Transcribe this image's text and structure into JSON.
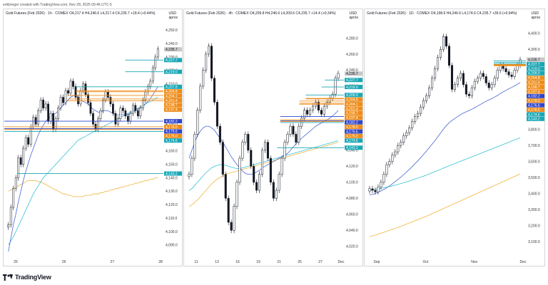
{
  "header": {
    "credit": "erikbreger created with TradingView.com, Nov 28, 2025 09:46 UTC-5"
  },
  "brand": {
    "name": "TradingView"
  },
  "colors": {
    "up": "#131722",
    "down": "#131722",
    "ma_fast": "#4a67d6",
    "ma_mid": "#35c2d6",
    "ma_slow": "#f0b43c",
    "teal": "#18a7b5",
    "orange": "#f08c18",
    "blue": "#3045c9",
    "grey_tag": "#c8c8c8"
  },
  "chart_data": [
    {
      "type": "line",
      "title": "Gold Futures (Feb 2026) · 1h · COMEX",
      "ohlc": "O4,217.4 H4,246.6 L4,217.4 C4,235.7 +18.4 (+0.44%)",
      "currency": "USD",
      "unit": "aprox",
      "ylim": [
        4083,
        4256
      ],
      "yticks": [
        4090,
        4100,
        4110,
        4120,
        4130,
        4140,
        4150,
        4160,
        4170,
        4180,
        4190,
        4200,
        4210,
        4220,
        4230,
        4240,
        4250
      ],
      "ytick_labels": [
        "4,090.0",
        "4,100.0",
        "4,110.0",
        "4,120.0",
        "4,130.0",
        "4,140.0",
        "4,150.0",
        "4,160.0",
        "4,170.0",
        "4,180.0",
        "4,190.0",
        "4,200.0",
        "4,210.0",
        "4,220.0",
        "4,230.0",
        "4,240.0",
        "4,250.0"
      ],
      "xlabels": [
        "25",
        "26",
        "27",
        "28"
      ],
      "close_series": [
        4105,
        4118,
        4132,
        4140,
        4155,
        4150,
        4162,
        4170,
        4165,
        4178,
        4185,
        4180,
        4190,
        4198,
        4192,
        4195,
        4182,
        4188,
        4176,
        4184,
        4192,
        4200,
        4196,
        4205,
        4203,
        4212,
        4208,
        4200,
        4195,
        4205,
        4210,
        4202,
        4196,
        4188,
        4180,
        4176,
        4184,
        4190,
        4198,
        4204,
        4200,
        4195,
        4188,
        4180,
        4184,
        4192,
        4190,
        4186,
        4182,
        4188,
        4194,
        4190,
        4186,
        4192,
        4198,
        4204,
        4208,
        4212,
        4222,
        4230,
        4236
      ],
      "ma_fast": [
        4085,
        4095,
        4105,
        4113,
        4122,
        4130,
        4138,
        4145,
        4151,
        4157,
        4162,
        4167,
        4172,
        4176,
        4179,
        4182,
        4184,
        4186,
        4187,
        4188,
        4190,
        4192,
        4194,
        4196,
        4198,
        4200,
        4201,
        4202,
        4200,
        4198,
        4197,
        4196,
        4195,
        4193,
        4191,
        4190,
        4189,
        4189,
        4190,
        4190,
        4190,
        4189,
        4188,
        4187,
        4187,
        4187,
        4187,
        4187,
        4187,
        4188,
        4189,
        4190,
        4191,
        4192,
        4193,
        4195,
        4197,
        4199,
        4202,
        4205,
        4208
      ],
      "ma_mid": [
        4090,
        4093,
        4096,
        4100,
        4104,
        4108,
        4112,
        4116,
        4120,
        4124,
        4128,
        4131,
        4134,
        4137,
        4140,
        4142,
        4144,
        4146,
        4148,
        4150,
        4152,
        4154,
        4156,
        4158,
        4160,
        4162,
        4164,
        4166,
        4168,
        4169,
        4170,
        4171,
        4172,
        4173,
        4174,
        4175,
        4176,
        4177,
        4178,
        4179,
        4180,
        4181,
        4182,
        4183,
        4184,
        4185,
        4186,
        4187,
        4188,
        4189,
        4190,
        4191,
        4192,
        4193,
        4194,
        4195,
        4196,
        4197,
        4198,
        4199,
        4200
      ],
      "ma_slow": [
        4130,
        4131,
        4132,
        4133,
        4134,
        4135,
        4136,
        4137,
        4138,
        4138,
        4138,
        4138,
        4137,
        4137,
        4136,
        4135,
        4134,
        4133,
        4132,
        4131,
        4130,
        4129,
        4128,
        4128,
        4127,
        4127,
        4126,
        4126,
        4126,
        4126,
        4126,
        4127,
        4127,
        4127,
        4128,
        4128,
        4128,
        4129,
        4129,
        4130,
        4130,
        4131,
        4131,
        4132,
        4132,
        4133,
        4133,
        4134,
        4134,
        4135,
        4135,
        4136,
        4136,
        4137,
        4137,
        4138,
        4138,
        4139,
        4139,
        4140,
        4140
      ],
      "levels": [
        {
          "value": 4227.7,
          "label": "4,227.7",
          "color": "#18a7b5",
          "from": 0.76
        },
        {
          "value": 4219.0,
          "label": "4,219.0",
          "color": "#18a7b5",
          "from": 0.76
        },
        {
          "value": 4207.8,
          "label": "4,207.8",
          "color": "#18a7b5",
          "from": 0.45
        },
        {
          "value": 4204.8,
          "label": "4,204.8",
          "color": "#f08c18",
          "from": 0.45
        },
        {
          "value": 4204.1,
          "label": "4,204.1",
          "color": "#f08c18",
          "from": 0.45
        },
        {
          "value": 4201.4,
          "label": "4,201.4",
          "color": "#f08c18",
          "from": 0.4
        },
        {
          "value": 4198.7,
          "label": "4,198.7",
          "color": "#f08c18",
          "from": 0.4
        },
        {
          "value": 4197.4,
          "label": "4,197.4",
          "color": "#f08c18",
          "from": 0.4
        },
        {
          "value": 4182.2,
          "label": "4,182.2",
          "color": "#3045c9",
          "from": 0.0
        },
        {
          "value": 4178.0,
          "label": "4,178.0",
          "color": "#f08c18",
          "from": 0.0
        },
        {
          "value": 4176.6,
          "label": "4,176.6",
          "color": "#3045c9",
          "from": 0.0
        },
        {
          "value": 4176.0,
          "label": "4,176.0",
          "color": "#f08c18",
          "from": 0.0
        },
        {
          "value": 4174.6,
          "label": "4,174.6",
          "color": "#18a7b5",
          "from": 0.0
        },
        {
          "value": 4143.2,
          "label": "4,143.2",
          "color": "#18a7b5",
          "from": 0.08
        }
      ],
      "last_price": {
        "value": 4235.7,
        "label": "4,235.7"
      }
    },
    {
      "type": "line",
      "title": "Gold Futures (Feb 2026) · 4h · COMEX",
      "ohlc": "O4,209.8 H4,246.6 L4,209.6 C4,235.7 +14.4 (+0.34%)",
      "currency": "USD",
      "unit": "aprox",
      "ylim": [
        4010,
        4300
      ],
      "yticks": [
        4020,
        4040,
        4060,
        4080,
        4100,
        4120,
        4140,
        4160,
        4180,
        4200,
        4220,
        4240,
        4260,
        4280
      ],
      "ytick_labels": [
        "4,020.0",
        "4,040.0",
        "4,060.0",
        "4,080.0",
        "4,100.0",
        "4,120.0",
        "4,140.0",
        "4,160.0",
        "4,180.0",
        "4,200.0",
        "4,220.0",
        "4,240.0",
        "4,260.0",
        "4,280.0"
      ],
      "xlabels": [
        "11",
        "13",
        "16",
        "19",
        "21",
        "25",
        "27",
        "Dec"
      ],
      "close_series": [
        4110,
        4130,
        4160,
        4190,
        4220,
        4240,
        4260,
        4270,
        4230,
        4200,
        4170,
        4150,
        4110,
        4080,
        4050,
        4040,
        4070,
        4100,
        4130,
        4150,
        4160,
        4140,
        4120,
        4100,
        4090,
        4110,
        4140,
        4150,
        4130,
        4100,
        4080,
        4090,
        4110,
        4130,
        4150,
        4160,
        4170,
        4160,
        4150,
        4170,
        4180,
        4190,
        4185,
        4190,
        4195,
        4200,
        4190,
        4185,
        4195,
        4200,
        4205,
        4210,
        4230,
        4236
      ],
      "ma_fast": [
        4130,
        4140,
        4150,
        4158,
        4164,
        4168,
        4170,
        4170,
        4168,
        4165,
        4160,
        4155,
        4150,
        4144,
        4138,
        4132,
        4127,
        4122,
        4118,
        4114,
        4111,
        4110,
        4110,
        4111,
        4113,
        4115,
        4118,
        4120,
        4122,
        4124,
        4126,
        4128,
        4130,
        4132,
        4134,
        4136,
        4140,
        4144,
        4148,
        4152,
        4155,
        4158,
        4161,
        4164,
        4167,
        4170,
        4172,
        4174,
        4176,
        4178,
        4180,
        4183,
        4186,
        4190
      ],
      "ma_mid": [
        4090,
        4092,
        4096,
        4100,
        4104,
        4108,
        4112,
        4115,
        4118,
        4120,
        4121,
        4122,
        4122,
        4121,
        4120,
        4119,
        4118,
        4117,
        4117,
        4118,
        4119,
        4120,
        4121,
        4122,
        4123,
        4124,
        4125,
        4126,
        4127,
        4128,
        4129,
        4130,
        4131,
        4132,
        4133,
        4134,
        4135,
        4136,
        4137,
        4138,
        4139,
        4140,
        4141,
        4142,
        4143,
        4144,
        4145,
        4146,
        4147,
        4148,
        4149,
        4150,
        4151,
        4152
      ],
      "ma_slow": [
        4070,
        4072,
        4075,
        4078,
        4082,
        4086,
        4090,
        4094,
        4098,
        4101,
        4104,
        4106,
        4108,
        4110,
        4111,
        4112,
        4113,
        4114,
        4115,
        4116,
        4117,
        4118,
        4119,
        4120,
        4121,
        4122,
        4123,
        4124,
        4125,
        4126,
        4127,
        4128,
        4129,
        4130,
        4131,
        4132,
        4133,
        4134,
        4135,
        4136,
        4137,
        4138,
        4139,
        4140,
        4141,
        4142,
        4143,
        4144,
        4145,
        4146,
        4147,
        4148,
        4149,
        4150
      ],
      "levels": [
        {
          "value": 4227.7,
          "label": "4,227.7",
          "color": "#18a7b5",
          "from": 0.88
        },
        {
          "value": 4219.0,
          "label": "4,219.0",
          "color": "#18a7b5",
          "from": 0.86
        },
        {
          "value": 4209.0,
          "label": "4,209.0",
          "color": "#18a7b5",
          "from": 0.76
        },
        {
          "value": 4204.8,
          "label": "4,204.8",
          "color": "#f08c18",
          "from": 0.76
        },
        {
          "value": 4204.1,
          "label": "4,204.1",
          "color": "#f08c18",
          "from": 0.76
        },
        {
          "value": 4201.4,
          "label": "4,201.4",
          "color": "#f08c18",
          "from": 0.72
        },
        {
          "value": 4198.7,
          "label": "4,198.7",
          "color": "#f08c18",
          "from": 0.72
        },
        {
          "value": 4197.4,
          "label": "4,197.4",
          "color": "#f08c18",
          "from": 0.72
        },
        {
          "value": 4182.2,
          "label": "4,182.2",
          "color": "#3045c9",
          "from": 0.6
        },
        {
          "value": 4178.0,
          "label": "4,178.0",
          "color": "#f08c18",
          "from": 0.6
        },
        {
          "value": 4176.6,
          "label": "4,176.6",
          "color": "#3045c9",
          "from": 0.6
        },
        {
          "value": 4176.0,
          "label": "4,176.0",
          "color": "#f08c18",
          "from": 0.6
        },
        {
          "value": 4174.6,
          "label": "4,174.6",
          "color": "#18a7b5",
          "from": 0.6
        },
        {
          "value": 4143.2,
          "label": "4,143.2",
          "color": "#18a7b5",
          "from": 0.58
        }
      ],
      "last_price": {
        "value": 4235.7,
        "label": "4,235.7"
      }
    },
    {
      "type": "line",
      "title": "Gold Futures (Feb 2026) · 1D · COMEX",
      "ohlc": "O4,198.6 H4,246.6 L4,174.6 C4,235.7 +39.6 (+0.94%)",
      "currency": "USD",
      "unit": "aprox",
      "ylim": [
        3020,
        4470
      ],
      "yticks": [
        3100,
        3200,
        3300,
        3400,
        3500,
        3600,
        3700,
        3800,
        3900,
        4000,
        4100,
        4200,
        4300,
        4400
      ],
      "ytick_labels": [
        "3,100.0",
        "3,200.0",
        "3,300.0",
        "3,400.0",
        "3,500.0",
        "3,600.0",
        "3,700.0",
        "3,800.0",
        "3,900.0",
        "4,000.0",
        "4,100.0",
        "4,200.0",
        "4,300.0",
        "4,400.0"
      ],
      "xlabels": [
        "Sep",
        "Oct",
        "Nov",
        "Dec"
      ],
      "close_series": [
        3430,
        3420,
        3410,
        3440,
        3470,
        3520,
        3580,
        3600,
        3640,
        3660,
        3700,
        3720,
        3760,
        3780,
        3810,
        3850,
        3880,
        3900,
        3940,
        3980,
        4010,
        4060,
        4120,
        4180,
        4250,
        4300,
        4380,
        4320,
        4200,
        4050,
        4080,
        4120,
        4150,
        4080,
        4020,
        4010,
        4060,
        4100,
        4120,
        4150,
        4130,
        4090,
        4060,
        4080,
        4120,
        4170,
        4200,
        4180,
        4160,
        4140,
        4130,
        4170,
        4200,
        4236
      ],
      "ma_fast": [
        3390,
        3395,
        3400,
        3408,
        3416,
        3425,
        3436,
        3448,
        3460,
        3474,
        3488,
        3502,
        3518,
        3534,
        3550,
        3568,
        3586,
        3604,
        3624,
        3644,
        3664,
        3686,
        3708,
        3730,
        3754,
        3778,
        3802,
        3824,
        3842,
        3856,
        3868,
        3880,
        3892,
        3902,
        3910,
        3918,
        3926,
        3936,
        3946,
        3956,
        3966,
        3976,
        3984,
        3992,
        4002,
        4012,
        4024,
        4034,
        4044,
        4054,
        4062,
        4072,
        4082,
        4092
      ],
      "ma_mid": [
        3420,
        3422,
        3425,
        3428,
        3432,
        3436,
        3440,
        3444,
        3448,
        3452,
        3457,
        3462,
        3467,
        3472,
        3478,
        3484,
        3490,
        3496,
        3502,
        3508,
        3515,
        3522,
        3529,
        3536,
        3543,
        3550,
        3558,
        3566,
        3573,
        3580,
        3587,
        3594,
        3601,
        3608,
        3615,
        3622,
        3629,
        3636,
        3643,
        3650,
        3657,
        3664,
        3671,
        3678,
        3685,
        3692,
        3699,
        3706,
        3713,
        3720,
        3727,
        3734,
        3741,
        3748
      ],
      "ma_slow": [
        3130,
        3135,
        3140,
        3146,
        3152,
        3158,
        3164,
        3170,
        3176,
        3182,
        3188,
        3195,
        3202,
        3209,
        3216,
        3223,
        3230,
        3237,
        3244,
        3251,
        3258,
        3266,
        3274,
        3282,
        3290,
        3298,
        3306,
        3314,
        3322,
        3330,
        3338,
        3346,
        3354,
        3362,
        3370,
        3378,
        3386,
        3394,
        3402,
        3410,
        3418,
        3426,
        3434,
        3442,
        3450,
        3458,
        3466,
        3474,
        3482,
        3490,
        3498,
        3506,
        3514,
        3522
      ],
      "levels": [
        {
          "value": 4227.7,
          "label": "4,227.7",
          "color": "#18a7b5",
          "from": 0.8
        },
        {
          "value": 4219.0,
          "label": "4,219.0",
          "color": "#18a7b5",
          "from": 0.8
        },
        {
          "value": 4209.0,
          "label": "4,209.0",
          "color": "#18a7b5",
          "from": 0.8
        },
        {
          "value": 4204.8,
          "label": "4,204.8",
          "color": "#f08c18",
          "from": 0.8
        },
        {
          "value": 4201.4,
          "label": "4,201.4",
          "color": "#f08c18",
          "from": 0.8
        },
        {
          "value": 4198.7,
          "label": "4,198.7",
          "color": "#f08c18",
          "from": 0.8
        },
        {
          "value": 4197.4,
          "label": "4,197.4",
          "color": "#f08c18",
          "from": 0.8
        }
      ],
      "extra_tags": [
        {
          "label": "4,182.2",
          "color": "#3045c9"
        },
        {
          "label": "4,178.0",
          "color": "#f08c18"
        },
        {
          "label": "4,176.6",
          "color": "#3045c9"
        },
        {
          "label": "4,176.0",
          "color": "#f08c18"
        },
        {
          "label": "4,174.6",
          "color": "#18a7b5"
        },
        {
          "label": "4,143.2",
          "color": "#18a7b5"
        }
      ],
      "last_price": {
        "value": 4235.7,
        "label": "4,235.7"
      }
    }
  ]
}
